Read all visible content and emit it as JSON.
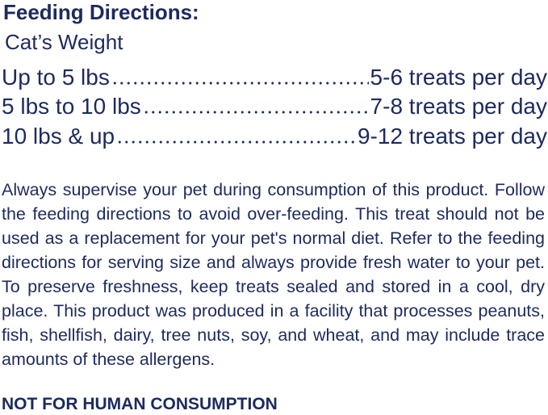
{
  "header": {
    "title": "Feeding Directions:",
    "subtitle": "Cat’s Weight"
  },
  "table": {
    "rows": [
      [
        "Up to 5 lbs",
        "5-6 treats per day"
      ],
      [
        "5 lbs to 10 lbs",
        "7-8 treats per day"
      ],
      [
        "10 lbs & up",
        "9-12 treats per day"
      ]
    ]
  },
  "body": {
    "paragraph": "Always supervise your pet during consumption of this product. Follow the feeding directions to avoid over-feeding. This treat should not be used as a replacement for your pet's normal diet. Refer to the feeding directions for serving size and always provide fresh water to your pet. To preserve freshness, keep treats sealed and stored in a cool, dry place. This product was produced in a facility that processes peanuts, fish, shellfish, dairy, tree nuts, soy, and wheat, and may include trace amounts of these allergens.",
    "warning": "NOT FOR HUMAN CONSUMPTION"
  }
}
